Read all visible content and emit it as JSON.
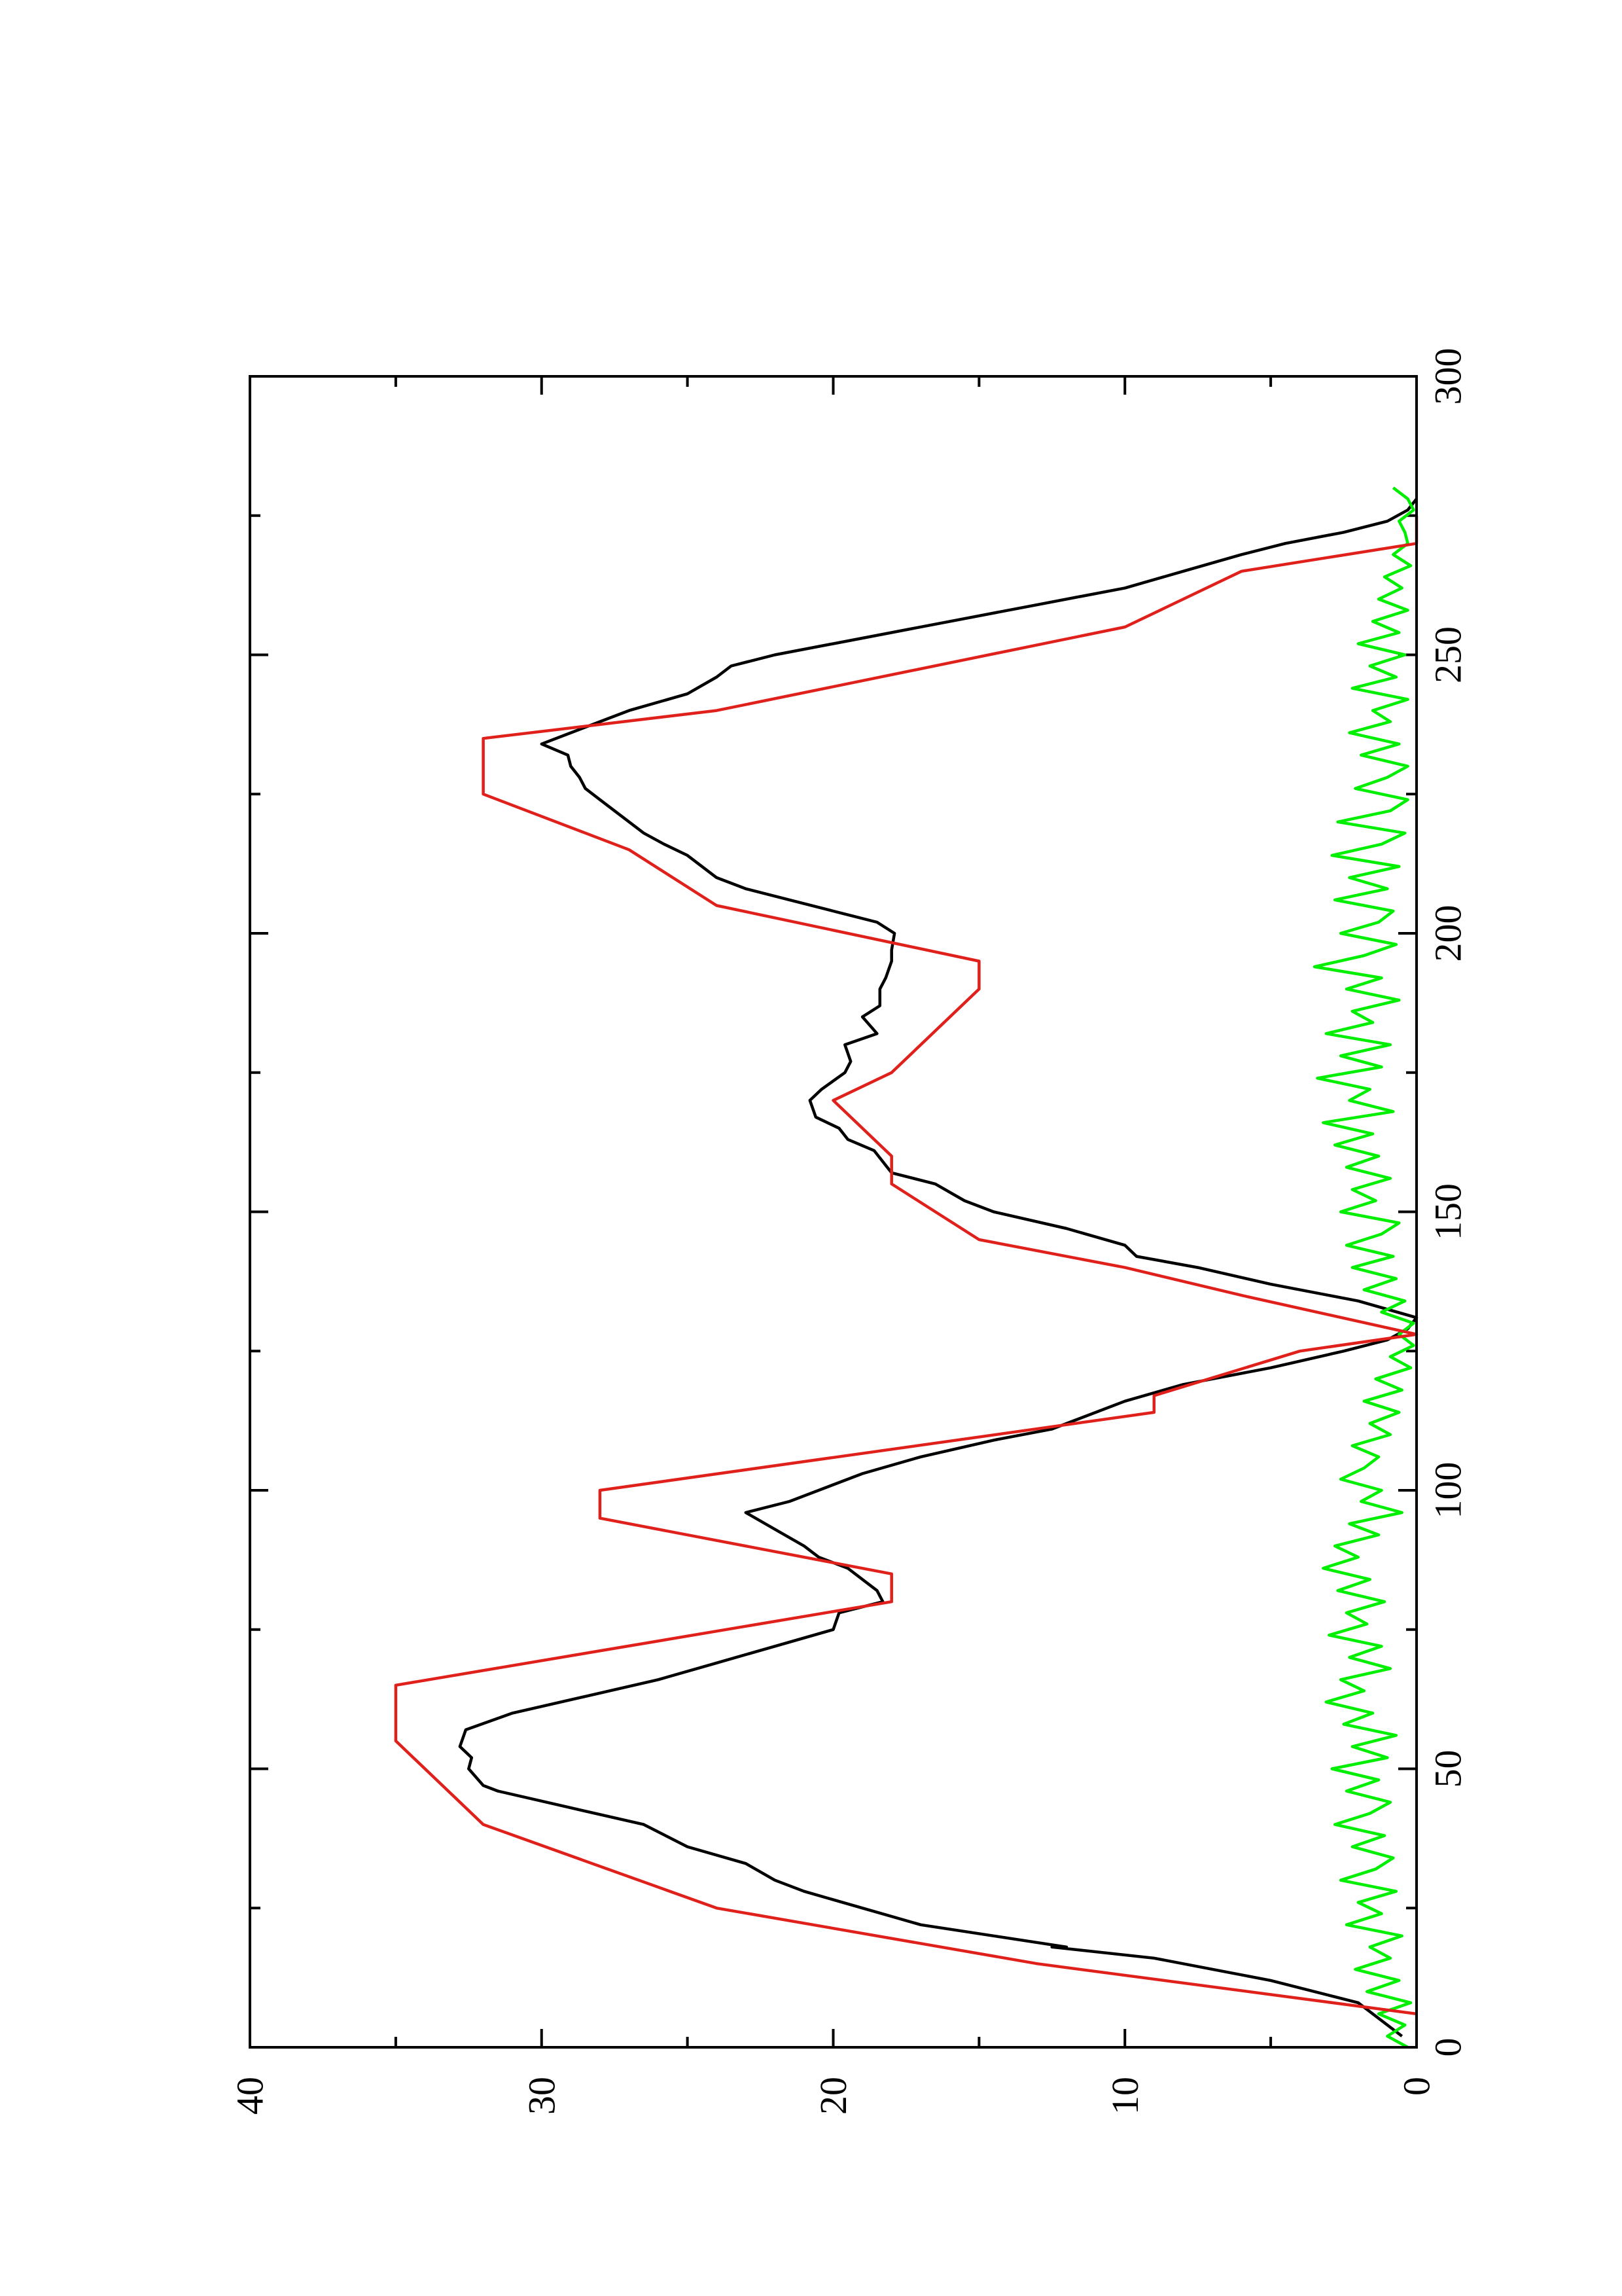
{
  "chart_data": {
    "type": "line",
    "orientation": "rotated-90-ccw",
    "x_axis": {
      "range": [
        0,
        300
      ],
      "ticks": [
        0,
        50,
        100,
        150,
        200,
        250,
        300
      ],
      "tick_labels": [
        "0",
        "50",
        "100",
        "150",
        "200",
        "250",
        "300"
      ],
      "minor_ticks": [
        25,
        75,
        125,
        175,
        225,
        275
      ]
    },
    "y_axis": {
      "range": [
        0,
        40
      ],
      "ticks": [
        0,
        10,
        20,
        30,
        40
      ],
      "tick_labels": [
        "0",
        "10",
        "20",
        "30",
        "40"
      ],
      "minor_ticks": [
        5,
        15,
        25,
        35
      ]
    },
    "grid": false,
    "legend": "none",
    "series": [
      {
        "color": "#e0201b",
        "x": [
          6,
          15,
          15,
          25,
          25,
          40,
          40,
          55,
          55,
          65,
          65,
          80,
          80,
          85,
          85,
          95,
          95,
          100,
          100,
          114,
          114,
          117,
          117,
          125,
          125,
          128,
          128,
          135,
          135,
          140,
          140,
          145,
          145,
          155,
          155,
          160,
          160,
          170,
          170,
          175,
          175,
          190,
          190,
          195,
          195,
          205,
          205,
          215,
          215,
          225,
          225,
          235,
          235,
          240,
          240,
          255,
          255,
          265,
          265,
          270,
          270,
          275
        ],
        "y": [
          0,
          13,
          13,
          24,
          24,
          32,
          32,
          35,
          35,
          35,
          35,
          18,
          18,
          18,
          18,
          28,
          28,
          28,
          28,
          9,
          9,
          9,
          9,
          4,
          4,
          0,
          0,
          6,
          6,
          10,
          10,
          15,
          15,
          18,
          18,
          18,
          18,
          20,
          20,
          18,
          18,
          15,
          15,
          15,
          15,
          24,
          24,
          27,
          27,
          32,
          32,
          32,
          32,
          24,
          24,
          10,
          10,
          6,
          6,
          0,
          0,
          0
        ]
      },
      {
        "color": "#000000",
        "x": [
          2,
          8,
          12,
          16,
          18,
          18,
          20,
          22,
          25,
          28,
          30,
          33,
          36,
          40,
          43,
          46,
          47,
          50,
          52,
          54,
          57,
          60,
          63,
          66,
          69,
          72,
          75,
          78,
          80,
          82,
          86,
          88,
          90,
          93,
          96,
          98,
          100,
          103,
          106,
          109,
          111,
          113,
          116,
          119,
          122,
          125,
          127,
          129,
          131,
          134,
          137,
          140,
          142,
          144,
          147,
          150,
          152,
          155,
          157,
          159,
          161,
          163,
          165,
          167,
          170,
          172,
          175,
          177,
          180,
          182,
          185,
          187,
          190,
          192,
          195,
          197,
          200,
          202,
          204,
          206,
          208,
          210,
          212,
          214,
          216,
          218,
          220,
          222,
          224,
          226,
          228,
          230,
          232,
          234,
          236,
          238,
          240,
          243,
          246,
          248,
          250,
          253,
          256,
          259,
          262,
          265,
          268,
          270,
          272,
          274,
          276,
          278
        ],
        "y": [
          0.5,
          2,
          5,
          9,
          12.5,
          12,
          14.5,
          17,
          19,
          21,
          22,
          23,
          25,
          26.5,
          29,
          31.5,
          32,
          32.5,
          32.4,
          32.8,
          32.6,
          31,
          28.5,
          26,
          24,
          22,
          20,
          19.8,
          18.3,
          18.5,
          19.5,
          20.5,
          21,
          22,
          23,
          21.5,
          20.5,
          19,
          17,
          14.5,
          12.5,
          11.5,
          10,
          8,
          5,
          2.5,
          1,
          0.3,
          0,
          2,
          5,
          7.5,
          9.6,
          10,
          12,
          14.5,
          15.5,
          16.5,
          18,
          18.3,
          18.6,
          19.5,
          19.8,
          20.6,
          20.8,
          20.4,
          19.6,
          19.4,
          19.6,
          18.5,
          19,
          18.4,
          18.4,
          18.2,
          18,
          18,
          17.9,
          18.5,
          20,
          21.5,
          23,
          24,
          24.5,
          25,
          25.8,
          26.5,
          27,
          27.5,
          28,
          28.5,
          28.7,
          29,
          29.1,
          30,
          29,
          28,
          27,
          25,
          24,
          23.5,
          22,
          19,
          16,
          13,
          10,
          8,
          6,
          4.5,
          2.5,
          1,
          0.3,
          0
        ],
        "note_skip": true
      },
      {
        "color": "#00ee00",
        "x": [
          0,
          2,
          4,
          6,
          8,
          10,
          12,
          14,
          16,
          18,
          20,
          22,
          24,
          26,
          28,
          30,
          32,
          34,
          36,
          38,
          40,
          42,
          44,
          46,
          48,
          50,
          52,
          54,
          56,
          58,
          60,
          62,
          64,
          66,
          68,
          70,
          72,
          74,
          76,
          78,
          80,
          82,
          84,
          86,
          88,
          90,
          92,
          94,
          96,
          98,
          100,
          102,
          104,
          106,
          108,
          110,
          112,
          114,
          116,
          118,
          120,
          122,
          124,
          126,
          128,
          130,
          132,
          134,
          136,
          138,
          140,
          142,
          144,
          146,
          148,
          150,
          152,
          154,
          156,
          158,
          160,
          162,
          164,
          166,
          168,
          170,
          172,
          174,
          176,
          178,
          180,
          182,
          184,
          186,
          188,
          190,
          192,
          194,
          196,
          198,
          200,
          202,
          204,
          206,
          208,
          210,
          212,
          214,
          216,
          218,
          220,
          222,
          224,
          226,
          228,
          230,
          232,
          234,
          236,
          238,
          240,
          242,
          244,
          246,
          248,
          250,
          252,
          254,
          256,
          258,
          260,
          262,
          264,
          266,
          268,
          270,
          272,
          274,
          276,
          278,
          280
        ],
        "y": [
          0.3,
          1,
          0.4,
          1.3,
          0.2,
          1.7,
          0.6,
          2.1,
          0.9,
          1.6,
          0.5,
          2.4,
          1.2,
          2.0,
          0.7,
          2.6,
          1.4,
          0.8,
          2.2,
          1.1,
          2.8,
          1.6,
          0.9,
          2.4,
          1.3,
          2.9,
          1.0,
          2.2,
          0.7,
          2.5,
          1.5,
          3.1,
          1.8,
          2.6,
          0.9,
          2.3,
          1.2,
          3.0,
          1.7,
          2.4,
          1.1,
          2.7,
          1.6,
          3.2,
          2.0,
          2.8,
          1.3,
          2.3,
          0.5,
          1.9,
          1.2,
          2.6,
          1.8,
          1.3,
          2.2,
          0.9,
          1.6,
          0.6,
          1.8,
          0.5,
          1.4,
          0.2,
          0.9,
          0.1,
          0.6,
          0.1,
          1.2,
          0.4,
          1.8,
          0.7,
          2.2,
          0.8,
          2.4,
          1.2,
          0.6,
          2.6,
          1.4,
          2.2,
          0.9,
          2.4,
          1.3,
          2.8,
          1.5,
          3.2,
          0.8,
          2.3,
          1.6,
          3.4,
          1.2,
          2.6,
          0.9,
          3.1,
          1.5,
          2.2,
          0.6,
          2.4,
          1.2,
          3.5,
          1.8,
          0.7,
          2.6,
          1.3,
          0.8,
          2.8,
          1.0,
          2.3,
          0.6,
          2.9,
          1.2,
          0.4,
          2.7,
          0.9,
          0.3,
          2.1,
          1.0,
          0.3,
          1.9,
          0.6,
          2.3,
          0.9,
          1.5,
          0.3,
          2.2,
          0.7,
          1.6,
          0.4,
          2.0,
          0.6,
          1.5,
          0.3,
          1.3,
          0.5,
          1.1,
          0.2,
          0.8,
          0.3,
          0.4,
          0.6,
          0.1,
          0.3,
          0.8
        ]
      }
    ]
  }
}
